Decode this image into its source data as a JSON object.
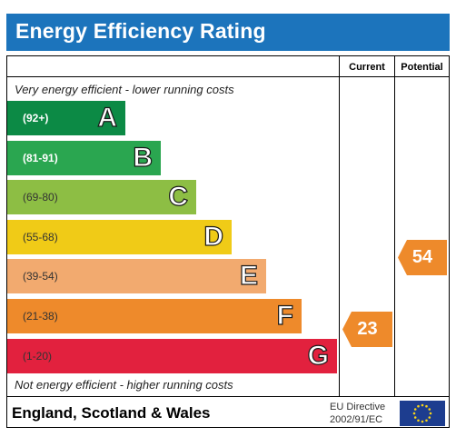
{
  "title": "Energy Efficiency Rating",
  "columns": {
    "current": "Current",
    "potential": "Potential"
  },
  "captions": {
    "top": "Very energy efficient - lower running costs",
    "bottom": "Not energy efficient - higher running costs"
  },
  "bands": [
    {
      "range": "(92+)",
      "letter": "A",
      "color": "#0c8a45"
    },
    {
      "range": "(81-91)",
      "letter": "B",
      "color": "#2aa650"
    },
    {
      "range": "(69-80)",
      "letter": "C",
      "color": "#8dbe44"
    },
    {
      "range": "(55-68)",
      "letter": "D",
      "color": "#f0cb17"
    },
    {
      "range": "(39-54)",
      "letter": "E",
      "color": "#f2aa6f"
    },
    {
      "range": "(21-38)",
      "letter": "F",
      "color": "#ee8a2b"
    },
    {
      "range": "(1-20)",
      "letter": "G",
      "color": "#e2213e"
    }
  ],
  "ratings": {
    "current": "23",
    "potential": "54",
    "arrow_color": "#ee8a2b"
  },
  "footer": {
    "region": "England, Scotland & Wales",
    "directive_line1": "EU Directive",
    "directive_line2": "2002/91/EC"
  },
  "icons": {
    "eu_flag": "eu-flag-icon"
  }
}
